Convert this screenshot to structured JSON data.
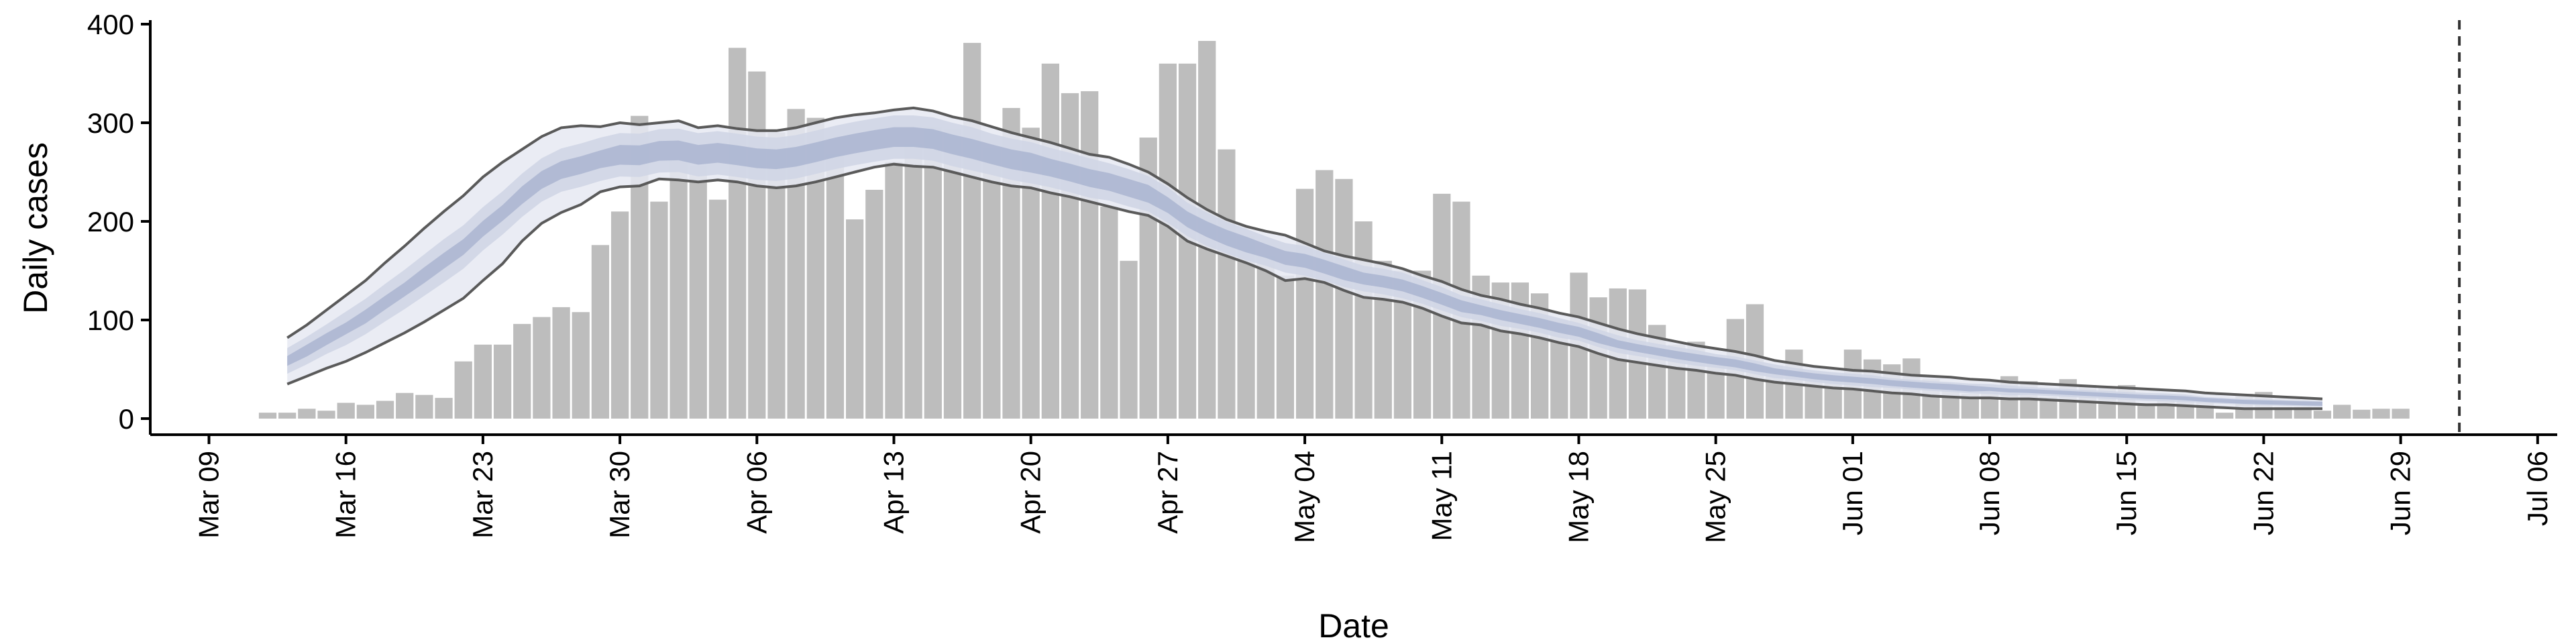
{
  "chart_data": {
    "type": "bar",
    "title": "",
    "xlabel": "Date",
    "ylabel": "Daily cases",
    "ylim": [
      0,
      400
    ],
    "y_ticks": [
      0,
      100,
      200,
      300,
      400
    ],
    "x_range": [
      "2020-03-06",
      "2020-07-07"
    ],
    "x_ticks": [
      {
        "date": "2020-03-09",
        "label": "Mar 09"
      },
      {
        "date": "2020-03-16",
        "label": "Mar 16"
      },
      {
        "date": "2020-03-23",
        "label": "Mar 23"
      },
      {
        "date": "2020-03-30",
        "label": "Mar 30"
      },
      {
        "date": "2020-04-06",
        "label": "Apr 06"
      },
      {
        "date": "2020-04-13",
        "label": "Apr 13"
      },
      {
        "date": "2020-04-20",
        "label": "Apr 20"
      },
      {
        "date": "2020-04-27",
        "label": "Apr 27"
      },
      {
        "date": "2020-05-04",
        "label": "May 04"
      },
      {
        "date": "2020-05-11",
        "label": "May 11"
      },
      {
        "date": "2020-05-18",
        "label": "May 18"
      },
      {
        "date": "2020-05-25",
        "label": "May 25"
      },
      {
        "date": "2020-06-01",
        "label": "Jun 01"
      },
      {
        "date": "2020-06-08",
        "label": "Jun 08"
      },
      {
        "date": "2020-06-15",
        "label": "Jun 15"
      },
      {
        "date": "2020-06-22",
        "label": "Jun 22"
      },
      {
        "date": "2020-06-29",
        "label": "Jun 29"
      },
      {
        "date": "2020-07-06",
        "label": "Jul 06"
      }
    ],
    "cutoff_date": "2020-07-02",
    "colors": {
      "bars": "#bdbdbd",
      "outer_band": "#e6e9f2",
      "mid_band": "#d0d6e6",
      "inner_band": "#aab5d0",
      "bound_lines": "#5a5a5a",
      "cutoff_line": "#333333"
    },
    "reported_cases": {
      "start_date": "2020-03-12",
      "values": [
        6,
        6,
        10,
        8,
        16,
        14,
        18,
        26,
        24,
        21,
        58,
        75,
        75,
        96,
        103,
        113,
        108,
        176,
        210,
        307,
        220,
        262,
        256,
        222,
        376,
        352,
        290,
        314,
        305,
        268,
        202,
        232,
        260,
        278,
        295,
        293,
        381,
        275,
        315,
        295,
        360,
        330,
        332,
        215,
        160,
        285,
        360,
        360,
        383,
        273,
        185,
        165,
        145,
        233,
        252,
        243,
        200,
        160,
        150,
        150,
        228,
        220,
        145,
        138,
        138,
        127,
        100,
        148,
        123,
        132,
        131,
        95,
        75,
        78,
        62,
        101,
        116,
        54,
        70,
        42,
        40,
        70,
        60,
        55,
        61,
        40,
        30,
        25,
        32,
        43,
        38,
        22,
        40,
        34,
        32,
        34,
        15,
        24,
        20,
        18,
        6,
        25,
        27,
        12,
        12,
        8,
        14,
        9,
        10,
        10
      ]
    },
    "estimate": {
      "start_date": "2020-03-13",
      "upper": [
        82,
        95,
        110,
        125,
        140,
        158,
        175,
        193,
        210,
        226,
        245,
        260,
        273,
        286,
        295,
        297,
        296,
        300,
        298,
        300,
        302,
        295,
        297,
        294,
        292,
        292,
        295,
        300,
        305,
        308,
        310,
        313,
        315,
        312,
        306,
        302,
        296,
        290,
        285,
        280,
        274,
        268,
        265,
        258,
        250,
        238,
        224,
        212,
        202,
        195,
        190,
        186,
        178,
        170,
        165,
        161,
        157,
        152,
        145,
        139,
        131,
        125,
        121,
        116,
        112,
        107,
        103,
        97,
        91,
        86,
        82,
        78,
        74,
        71,
        68,
        64,
        59,
        56,
        53,
        51,
        49,
        48,
        46,
        44,
        43,
        42,
        40,
        39,
        37,
        36,
        35,
        34,
        33,
        32,
        31,
        30,
        29,
        28,
        26,
        25,
        24,
        23,
        22,
        21,
        20
      ],
      "lower": [
        35,
        43,
        51,
        58,
        67,
        77,
        87,
        98,
        110,
        122,
        140,
        157,
        180,
        198,
        209,
        217,
        230,
        235,
        236,
        243,
        242,
        240,
        242,
        240,
        236,
        234,
        236,
        240,
        245,
        250,
        255,
        258,
        256,
        255,
        250,
        245,
        240,
        236,
        234,
        229,
        225,
        220,
        215,
        210,
        206,
        195,
        180,
        172,
        165,
        158,
        150,
        140,
        142,
        138,
        130,
        123,
        121,
        118,
        112,
        104,
        97,
        95,
        89,
        86,
        82,
        77,
        73,
        66,
        60,
        57,
        54,
        51,
        49,
        46,
        44,
        40,
        37,
        35,
        33,
        31,
        30,
        28,
        26,
        25,
        23,
        22,
        21,
        21,
        20,
        20,
        19,
        18,
        17,
        16,
        15,
        14,
        14,
        13,
        12,
        11,
        10,
        10,
        10,
        10,
        10
      ],
      "interval_halfwidth_inner": [
        5,
        6,
        6,
        6,
        7,
        7,
        7,
        8,
        8,
        8,
        8,
        8,
        9,
        9,
        9,
        9,
        9,
        10,
        10,
        10,
        10,
        10,
        10,
        10,
        10,
        10,
        10,
        10,
        10,
        10,
        10,
        10,
        10,
        10,
        10,
        10,
        10,
        10,
        10,
        9,
        9,
        9,
        9,
        9,
        9,
        8,
        8,
        8,
        8,
        8,
        7,
        7,
        7,
        7,
        7,
        6,
        6,
        6,
        6,
        6,
        6,
        5,
        5,
        5,
        5,
        5,
        5,
        5,
        4,
        4,
        4,
        4,
        4,
        4,
        4,
        4,
        3,
        3,
        3,
        3,
        3,
        3,
        3,
        3,
        3,
        3,
        3,
        2,
        2,
        2,
        2,
        2,
        2,
        2,
        2,
        2,
        2,
        2,
        2,
        2,
        2,
        2,
        2,
        2,
        2
      ],
      "interval_halfwidth_mid": [
        13,
        14,
        15,
        17,
        18,
        19,
        20,
        21,
        22,
        22,
        22,
        22,
        22,
        22,
        22,
        22,
        22,
        22,
        22,
        22,
        22,
        22,
        22,
        22,
        22,
        22,
        22,
        22,
        22,
        22,
        22,
        22,
        22,
        22,
        22,
        22,
        21,
        21,
        21,
        20,
        20,
        20,
        19,
        19,
        18,
        18,
        17,
        17,
        16,
        16,
        15,
        15,
        15,
        14,
        14,
        13,
        13,
        13,
        12,
        12,
        11,
        11,
        11,
        10,
        10,
        10,
        9,
        9,
        9,
        8,
        8,
        8,
        8,
        7,
        7,
        7,
        7,
        6,
        6,
        6,
        6,
        6,
        5,
        5,
        5,
        5,
        5,
        5,
        5,
        4,
        4,
        4,
        4,
        4,
        4,
        4,
        4,
        4,
        3,
        3,
        3,
        3,
        3,
        3,
        3
      ]
    }
  }
}
